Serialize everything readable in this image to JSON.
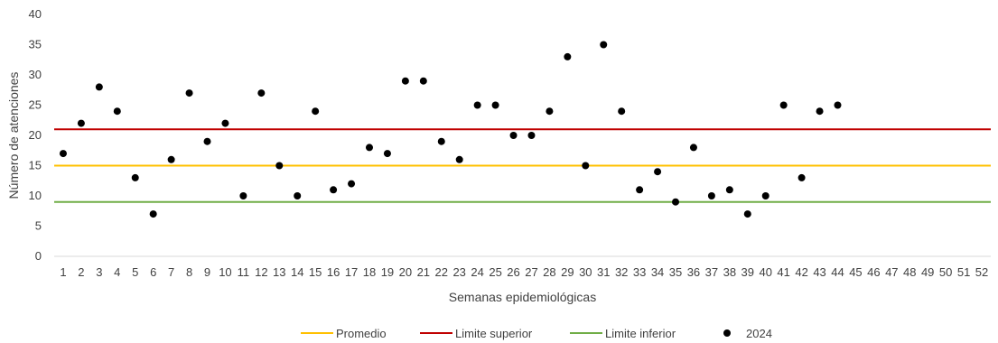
{
  "chart_data": {
    "type": "scatter",
    "xlabel": "Semanas epidemiológicas",
    "ylabel": "Número de atenciones",
    "ylim": [
      0,
      40
    ],
    "yticks": [
      "0",
      "5",
      "10",
      "15",
      "20",
      "25",
      "30",
      "35",
      "40"
    ],
    "categories": [
      "1",
      "2",
      "3",
      "4",
      "5",
      "6",
      "7",
      "8",
      "9",
      "10",
      "11",
      "12",
      "13",
      "14",
      "15",
      "16",
      "17",
      "18",
      "19",
      "20",
      "21",
      "22",
      "23",
      "24",
      "25",
      "26",
      "27",
      "28",
      "29",
      "30",
      "31",
      "32",
      "33",
      "34",
      "35",
      "36",
      "37",
      "38",
      "39",
      "40",
      "41",
      "42",
      "43",
      "44",
      "45",
      "46",
      "47",
      "48",
      "49",
      "50",
      "51",
      "52"
    ],
    "grid": false,
    "legend_position": "bottom",
    "lines": [
      {
        "name": "Promedio",
        "value": 15,
        "color": "#FFC000"
      },
      {
        "name": "Limite superior",
        "value": 21,
        "color": "#C00000"
      },
      {
        "name": "Limite inferior",
        "value": 9,
        "color": "#70AD47"
      }
    ],
    "series": [
      {
        "name": "2024",
        "color": "#000000",
        "values": [
          17,
          22,
          28,
          24,
          13,
          7,
          16,
          27,
          19,
          22,
          10,
          27,
          15,
          10,
          24,
          11,
          12,
          18,
          17,
          29,
          29,
          19,
          16,
          25,
          25,
          20,
          20,
          24,
          33,
          15,
          35,
          24,
          11,
          14,
          9,
          18,
          10,
          11,
          7,
          10,
          25,
          13,
          24,
          25
        ]
      }
    ]
  }
}
